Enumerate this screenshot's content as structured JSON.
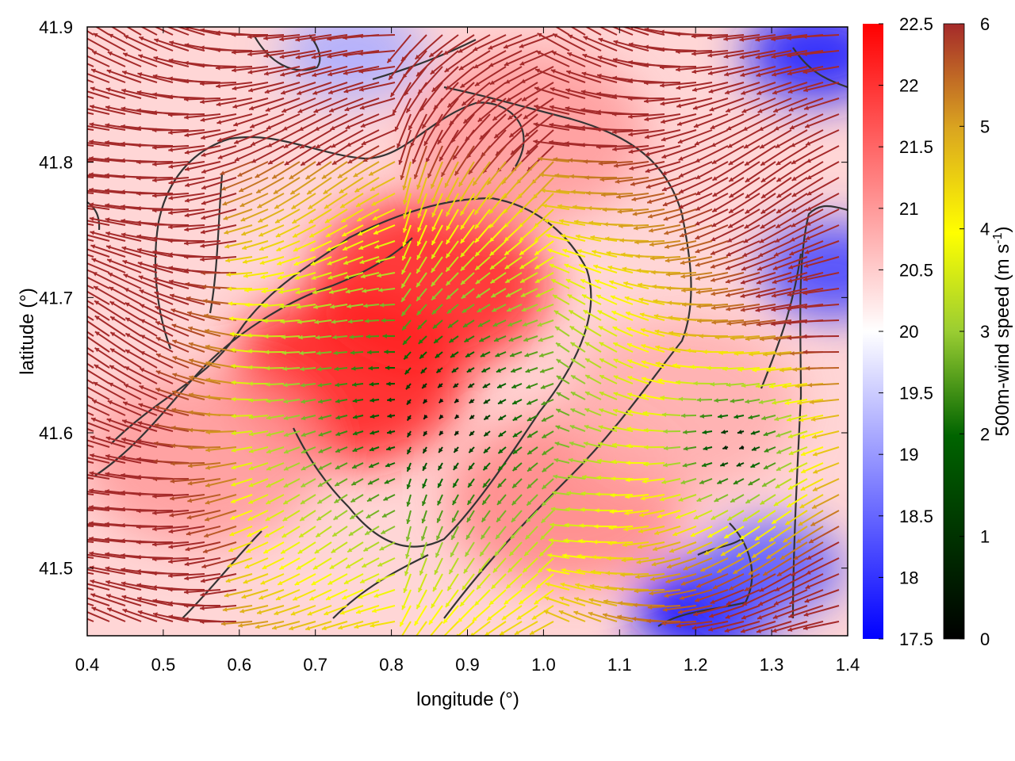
{
  "chart_data": {
    "type": "heatmap",
    "xlabel": "longitude (°)",
    "ylabel": "latitude (°)",
    "xlim": [
      0.4,
      1.4
    ],
    "ylim": [
      41.45,
      41.9
    ],
    "x_ticks": [
      "0.4",
      "0.5",
      "0.6",
      "0.7",
      "0.8",
      "0.9",
      "1.0",
      "1.1",
      "1.2",
      "1.3",
      "1.4"
    ],
    "y_ticks": [
      "41.5",
      "41.6",
      "41.7",
      "41.8",
      "41.9"
    ],
    "grid": false,
    "heat_colorbar": {
      "range": [
        17.5,
        22.5
      ],
      "ticks": [
        "17.5",
        "18",
        "18.5",
        "19",
        "19.5",
        "20",
        "20.5",
        "21",
        "21.5",
        "22",
        "22.5"
      ],
      "colors": [
        "#0000ff",
        "#ffffff",
        "#ff0000"
      ]
    },
    "wind_colorbar": {
      "label": "500m-wind speed (m s-1)",
      "label_main": "500m-wind speed (m s",
      "label_sup": "-1",
      "label_end": ")",
      "range": [
        0,
        6
      ],
      "ticks": [
        "0",
        "1",
        "2",
        "3",
        "4",
        "5",
        "6"
      ],
      "colors": [
        "#000000",
        "#006400",
        "#9acd32",
        "#ffff00",
        "#daa520",
        "#a52a2a"
      ]
    },
    "heat_hotspots": [
      {
        "lon": 0.74,
        "lat": 41.64,
        "value": 22.3
      },
      {
        "lon": 0.85,
        "lat": 41.71,
        "value": 22.2
      },
      {
        "lon": 0.98,
        "lat": 41.82,
        "value": 21.0
      },
      {
        "lon": 1.03,
        "lat": 41.55,
        "value": 21.2
      },
      {
        "lon": 1.18,
        "lat": 41.62,
        "value": 20.8
      },
      {
        "lon": 0.55,
        "lat": 41.58,
        "value": 21.0
      }
    ],
    "cold_spots": [
      {
        "lon": 1.21,
        "lat": 41.47,
        "value": 17.6
      },
      {
        "lon": 1.36,
        "lat": 41.88,
        "value": 17.8
      },
      {
        "lon": 1.38,
        "lat": 41.72,
        "value": 18.2
      },
      {
        "lon": 1.3,
        "lat": 41.5,
        "value": 18.4
      },
      {
        "lon": 0.75,
        "lat": 41.88,
        "value": 19.2
      }
    ]
  }
}
